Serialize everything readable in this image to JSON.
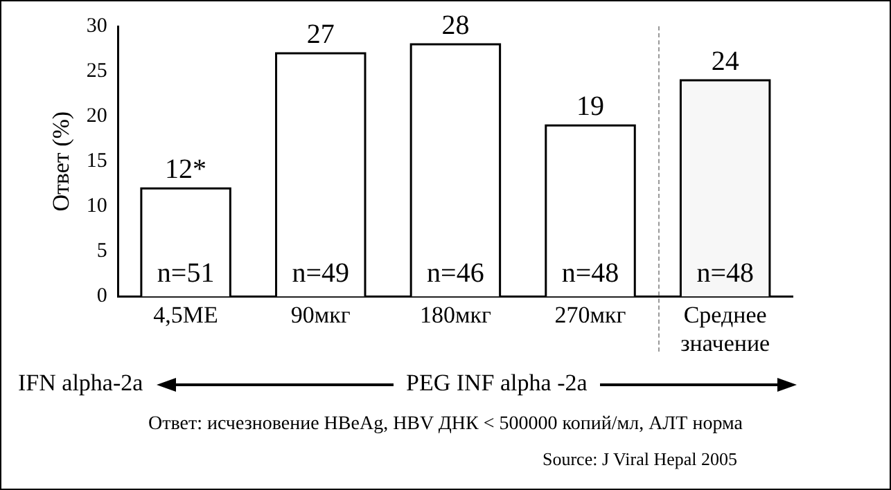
{
  "chart_data": {
    "type": "bar",
    "ylabel": "Ответ (%)",
    "categories": [
      "4,5МЕ",
      "90мкг",
      "180мкг",
      "270мкг",
      "Среднее значение"
    ],
    "values": [
      12,
      27,
      28,
      19,
      24
    ],
    "value_labels": [
      "12*",
      "27",
      "28",
      "19",
      "24"
    ],
    "colors": [
      "#ffffff",
      "#ffffff",
      "#ffffff",
      "#ffffff",
      "#f7f7f7"
    ],
    "ylim": [
      0,
      30
    ],
    "yticks": [
      0,
      5,
      10,
      15,
      20,
      25,
      30
    ],
    "grid": false,
    "legend": false,
    "annotations": [
      "n=51",
      "n=49",
      "n=46",
      "n=48",
      "n=48",
      "IFN alpha-2a",
      "PEG INF alpha -2a",
      "Ответ: исчезновение HBeAg, HBV ДНК < 500000 копий/мл, АЛТ норма",
      "Source: J Viral Hepal 2005"
    ]
  }
}
